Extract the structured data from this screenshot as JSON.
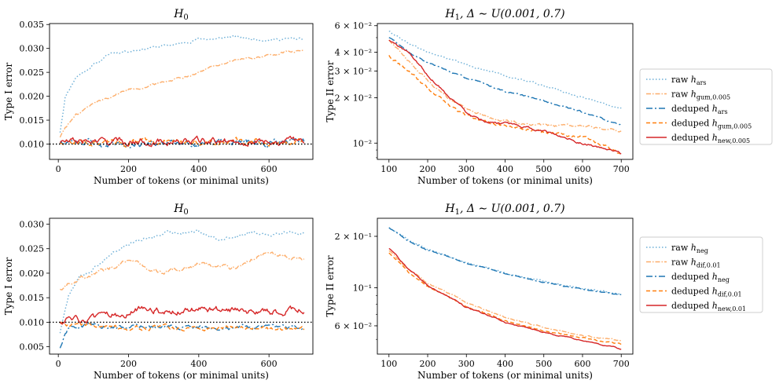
{
  "figure": {
    "description_title": "Type I / Type II error vs number of tokens"
  },
  "legends": [
    {
      "name": "top",
      "entries": [
        {
          "label": "raw h_ars",
          "prefix": "raw",
          "sym": "h",
          "sub": "ars",
          "color": "#6baed6",
          "dash": "1.5,2.5"
        },
        {
          "label": "raw h_gum,0.005",
          "prefix": "raw",
          "sym": "h",
          "sub": "gum,0.005",
          "color": "#fdae6b",
          "dash": "6,2,1.5,2"
        },
        {
          "label": "deduped h_ars",
          "prefix": "deduped",
          "sym": "h",
          "sub": "ars",
          "color": "#1f77b4",
          "dash": "8,3,2,3"
        },
        {
          "label": "deduped h_gum,0.005",
          "prefix": "deduped",
          "sym": "h",
          "sub": "gum,0.005",
          "color": "#ff7f0e",
          "dash": "5,3"
        },
        {
          "label": "deduped h_new,0.005",
          "prefix": "deduped",
          "sym": "h",
          "sub": "new,0.005",
          "color": "#d62728",
          "dash": ""
        }
      ]
    },
    {
      "name": "bottom",
      "entries": [
        {
          "label": "raw h_neg",
          "prefix": "raw",
          "sym": "h",
          "sub": "neg",
          "color": "#6baed6",
          "dash": "1.5,2.5"
        },
        {
          "label": "raw h_dif,0.01",
          "prefix": "raw",
          "sym": "h",
          "sub": "dif,0.01",
          "color": "#fdae6b",
          "dash": "6,2,1.5,2"
        },
        {
          "label": "deduped h_neg",
          "prefix": "deduped",
          "sym": "h",
          "sub": "neg",
          "color": "#1f77b4",
          "dash": "8,3,2,3"
        },
        {
          "label": "deduped h_dif,0.01",
          "prefix": "deduped",
          "sym": "h",
          "sub": "dif,0.01",
          "color": "#ff7f0e",
          "dash": "5,3"
        },
        {
          "label": "deduped h_new,0.01",
          "prefix": "deduped",
          "sym": "h",
          "sub": "new,0.01",
          "color": "#d62728",
          "dash": ""
        }
      ]
    }
  ],
  "chart_data": [
    {
      "type": "line",
      "title": "H_0",
      "title_sym": "H",
      "title_sub": "0",
      "title_rest": "",
      "xlabel": "Number of tokens (or minimal units)",
      "ylabel": "Type I error",
      "yscale": "linear",
      "xlim": [
        -25,
        725
      ],
      "ylim": [
        0.0068,
        0.0352
      ],
      "xticks": [
        0,
        200,
        400,
        600
      ],
      "xtick_labels": [
        "0",
        "200",
        "400",
        "600"
      ],
      "yticks": [
        0.01,
        0.015,
        0.02,
        0.025,
        0.03,
        0.035
      ],
      "ytick_labels": [
        "0.010",
        "0.015",
        "0.020",
        "0.025",
        "0.030",
        "0.035"
      ],
      "hline": {
        "y": 0.01,
        "style": "dotted",
        "color": "#000000"
      },
      "series": [
        {
          "name": "raw h_ars",
          "color": "#6baed6",
          "dash": "1.5,2.5",
          "x": [
            5,
            20,
            50,
            100,
            150,
            200,
            250,
            300,
            350,
            400,
            450,
            500,
            550,
            600,
            650,
            700
          ],
          "y": [
            0.0125,
            0.02,
            0.024,
            0.0265,
            0.029,
            0.0295,
            0.03,
            0.0305,
            0.031,
            0.032,
            0.032,
            0.0325,
            0.032,
            0.0318,
            0.032,
            0.032
          ],
          "noise": 0.0003
        },
        {
          "name": "raw h_gum,0.005",
          "color": "#fdae6b",
          "dash": "6,2,1.5,2",
          "x": [
            5,
            20,
            50,
            100,
            150,
            200,
            250,
            300,
            350,
            400,
            450,
            500,
            550,
            600,
            650,
            700
          ],
          "y": [
            0.0115,
            0.0135,
            0.016,
            0.0185,
            0.02,
            0.0215,
            0.022,
            0.023,
            0.024,
            0.025,
            0.0265,
            0.0275,
            0.028,
            0.0285,
            0.0292,
            0.0295
          ],
          "noise": 0.0003
        },
        {
          "name": "deduped h_ars",
          "color": "#1f77b4",
          "dash": "8,3,2,3",
          "x": [
            5,
            700
          ],
          "y": [
            0.0103,
            0.0104
          ],
          "noise": 0.0008
        },
        {
          "name": "deduped h_gum,0.005",
          "color": "#ff7f0e",
          "dash": "5,3",
          "x": [
            5,
            700
          ],
          "y": [
            0.0104,
            0.0105
          ],
          "noise": 0.0007
        },
        {
          "name": "deduped h_new,0.005",
          "color": "#d62728",
          "dash": "",
          "x": [
            5,
            700
          ],
          "y": [
            0.0105,
            0.0106
          ],
          "noise": 0.0008
        }
      ]
    },
    {
      "type": "line",
      "title": "H_1, Δ ~ U(0.001, 0.7)",
      "title_sym": "H",
      "title_sub": "1",
      "title_rest": ", Δ ∼ U(0.001, 0.7)",
      "xlabel": "Number of tokens (or minimal units)",
      "ylabel": "Type II error",
      "yscale": "log",
      "xlim": [
        70,
        730
      ],
      "ylim": [
        0.0078,
        0.062
      ],
      "xticks": [
        100,
        200,
        300,
        400,
        500,
        600,
        700
      ],
      "xtick_labels": [
        "100",
        "200",
        "300",
        "400",
        "500",
        "600",
        "700"
      ],
      "yticks": [
        0.01,
        0.02,
        0.03,
        0.04,
        0.06
      ],
      "ytick_labels": [
        "10⁻²",
        "2 × 10⁻²",
        "3 × 10⁻²",
        "4 × 10⁻²",
        "6 × 10⁻²"
      ],
      "series": [
        {
          "name": "raw h_ars",
          "color": "#6baed6",
          "dash": "1.5,2.5",
          "x": [
            100,
            150,
            200,
            300,
            400,
            500,
            600,
            700
          ],
          "y": [
            0.055,
            0.046,
            0.04,
            0.033,
            0.028,
            0.024,
            0.02,
            0.017
          ],
          "noise": 0.015
        },
        {
          "name": "raw h_gum,0.005",
          "color": "#fdae6b",
          "dash": "6,2,1.5,2",
          "x": [
            100,
            150,
            200,
            250,
            300,
            350,
            400,
            500,
            600,
            700
          ],
          "y": [
            0.048,
            0.035,
            0.026,
            0.02,
            0.017,
            0.015,
            0.014,
            0.013,
            0.013,
            0.012
          ],
          "noise": 0.02
        },
        {
          "name": "deduped h_ars",
          "color": "#1f77b4",
          "dash": "8,3,2,3",
          "x": [
            100,
            150,
            200,
            300,
            400,
            500,
            600,
            700
          ],
          "y": [
            0.05,
            0.04,
            0.034,
            0.027,
            0.022,
            0.019,
            0.016,
            0.013
          ],
          "noise": 0.015
        },
        {
          "name": "deduped h_gum,0.005",
          "color": "#ff7f0e",
          "dash": "5,3",
          "x": [
            100,
            150,
            200,
            250,
            300,
            350,
            400,
            500,
            600,
            700
          ],
          "y": [
            0.038,
            0.03,
            0.023,
            0.018,
            0.015,
            0.014,
            0.013,
            0.012,
            0.011,
            0.0085
          ],
          "noise": 0.025
        },
        {
          "name": "deduped h_new,0.005",
          "color": "#d62728",
          "dash": "",
          "x": [
            100,
            150,
            200,
            250,
            300,
            350,
            400,
            500,
            600,
            700
          ],
          "y": [
            0.048,
            0.04,
            0.028,
            0.021,
            0.016,
            0.014,
            0.0135,
            0.012,
            0.01,
            0.0085
          ],
          "noise": 0.02
        }
      ]
    },
    {
      "type": "line",
      "title": "H_0",
      "title_sym": "H",
      "title_sub": "0",
      "title_rest": "",
      "xlabel": "Number of tokens (or minimal units)",
      "ylabel": "Type I error",
      "yscale": "linear",
      "xlim": [
        -25,
        725
      ],
      "ylim": [
        0.0035,
        0.0312
      ],
      "xticks": [
        0,
        200,
        400,
        600
      ],
      "xtick_labels": [
        "0",
        "200",
        "400",
        "600"
      ],
      "yticks": [
        0.005,
        0.01,
        0.015,
        0.02,
        0.025,
        0.03
      ],
      "ytick_labels": [
        "0.005",
        "0.010",
        "0.015",
        "0.020",
        "0.025",
        "0.030"
      ],
      "hline": {
        "y": 0.01,
        "style": "dotted",
        "color": "#000000"
      },
      "series": [
        {
          "name": "raw h_neg",
          "color": "#6baed6",
          "dash": "1.5,2.5",
          "x": [
            5,
            30,
            60,
            100,
            150,
            200,
            250,
            300,
            350,
            400,
            450,
            500,
            550,
            600,
            650,
            700
          ],
          "y": [
            0.008,
            0.016,
            0.019,
            0.021,
            0.024,
            0.026,
            0.027,
            0.028,
            0.0285,
            0.0285,
            0.027,
            0.0275,
            0.0285,
            0.028,
            0.0285,
            0.028
          ],
          "noise": 0.0004
        },
        {
          "name": "raw h_dif,0.01",
          "color": "#fdae6b",
          "dash": "6,2,1.5,2",
          "x": [
            5,
            30,
            60,
            100,
            150,
            200,
            250,
            300,
            350,
            400,
            450,
            500,
            550,
            600,
            650,
            700
          ],
          "y": [
            0.017,
            0.018,
            0.019,
            0.02,
            0.021,
            0.023,
            0.021,
            0.02,
            0.021,
            0.022,
            0.0215,
            0.021,
            0.023,
            0.024,
            0.0235,
            0.0225
          ],
          "noise": 0.0005
        },
        {
          "name": "deduped h_neg",
          "color": "#1f77b4",
          "dash": "8,3,2,3",
          "x": [
            5,
            30,
            80,
            150,
            700
          ],
          "y": [
            0.005,
            0.009,
            0.0095,
            0.009,
            0.0088
          ],
          "noise": 0.0005
        },
        {
          "name": "deduped h_dif,0.01",
          "color": "#ff7f0e",
          "dash": "5,3",
          "x": [
            5,
            30,
            100,
            150,
            700
          ],
          "y": [
            0.01,
            0.0095,
            0.0095,
            0.009,
            0.0088
          ],
          "noise": 0.0005
        },
        {
          "name": "deduped h_new,0.01",
          "color": "#d62728",
          "dash": "",
          "x": [
            5,
            100,
            200,
            250,
            300,
            400,
            500,
            600,
            700
          ],
          "y": [
            0.0105,
            0.0105,
            0.012,
            0.0135,
            0.012,
            0.0125,
            0.0125,
            0.012,
            0.0125
          ],
          "noise": 0.0008
        }
      ]
    },
    {
      "type": "line",
      "title": "H_1, Δ ~ U(0.001, 0.7)",
      "title_sym": "H",
      "title_sub": "1",
      "title_rest": ", Δ ∼ U(0.001, 0.7)",
      "xlabel": "Number of tokens (or minimal units)",
      "ylabel": "Type II error",
      "yscale": "log",
      "xlim": [
        70,
        730
      ],
      "ylim": [
        0.041,
        0.255
      ],
      "xticks": [
        100,
        200,
        300,
        400,
        500,
        600,
        700
      ],
      "xtick_labels": [
        "100",
        "200",
        "300",
        "400",
        "500",
        "600",
        "700"
      ],
      "yticks": [
        0.06,
        0.1,
        0.2
      ],
      "ytick_labels": [
        "6 × 10⁻²",
        "10⁻¹",
        "2 × 10⁻¹"
      ],
      "series": [
        {
          "name": "raw h_neg",
          "color": "#6baed6",
          "dash": "1.5,2.5",
          "x": [
            100,
            150,
            200,
            300,
            400,
            500,
            600,
            700
          ],
          "y": [
            0.225,
            0.19,
            0.168,
            0.14,
            0.122,
            0.109,
            0.099,
            0.092
          ],
          "noise": 0.008
        },
        {
          "name": "raw h_dif,0.01",
          "color": "#fdae6b",
          "dash": "6,2,1.5,2",
          "x": [
            100,
            150,
            200,
            300,
            400,
            500,
            600,
            700
          ],
          "y": [
            0.165,
            0.128,
            0.106,
            0.082,
            0.067,
            0.059,
            0.053,
            0.049
          ],
          "noise": 0.01
        },
        {
          "name": "deduped h_neg",
          "color": "#1f77b4",
          "dash": "8,3,2,3",
          "x": [
            100,
            150,
            200,
            300,
            400,
            500,
            600,
            700
          ],
          "y": [
            0.225,
            0.188,
            0.166,
            0.139,
            0.121,
            0.108,
            0.098,
            0.091
          ],
          "noise": 0.008
        },
        {
          "name": "deduped h_dif,0.01",
          "color": "#ff7f0e",
          "dash": "5,3",
          "x": [
            100,
            150,
            200,
            300,
            400,
            500,
            600,
            700
          ],
          "y": [
            0.16,
            0.123,
            0.101,
            0.078,
            0.064,
            0.056,
            0.051,
            0.047
          ],
          "noise": 0.01
        },
        {
          "name": "deduped h_new,0.01",
          "color": "#d62728",
          "dash": "",
          "x": [
            100,
            150,
            200,
            300,
            400,
            500,
            600,
            700
          ],
          "y": [
            0.17,
            0.128,
            0.103,
            0.077,
            0.063,
            0.055,
            0.049,
            0.044
          ],
          "noise": 0.01
        }
      ]
    }
  ]
}
